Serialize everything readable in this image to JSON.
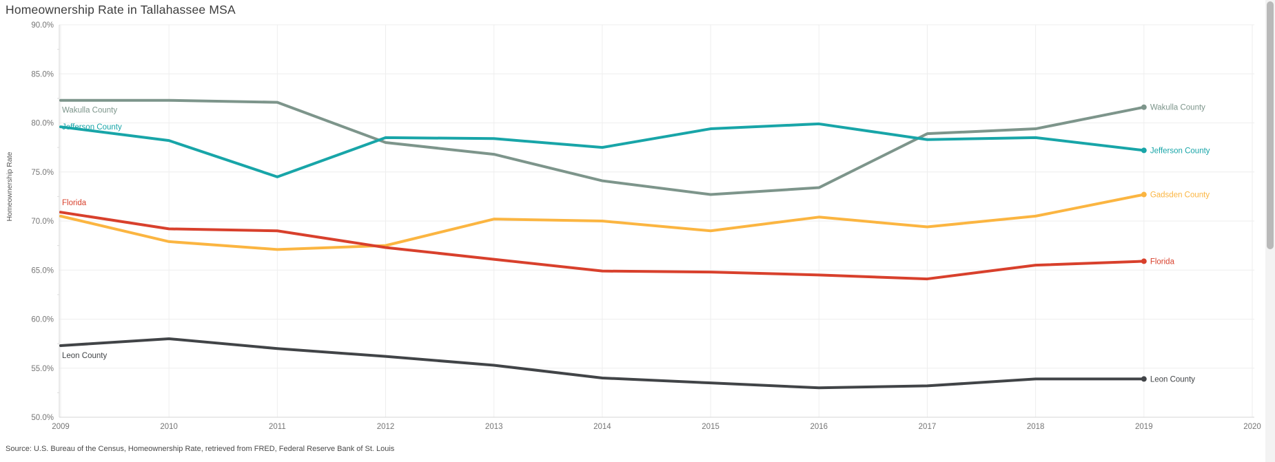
{
  "page": {
    "title": "Homeownership Rate in Tallahassee MSA",
    "source": "Source: U.S. Bureau of the Census, Homeownership Rate, retrieved from FRED, Federal Reserve Bank of St. Louis"
  },
  "chart_data": {
    "type": "line",
    "title": "Homeownership Rate in Tallahassee MSA",
    "xlabel": "",
    "ylabel": "Homeownership Rate",
    "x": [
      2009,
      2010,
      2011,
      2012,
      2013,
      2014,
      2015,
      2016,
      2017,
      2018,
      2019
    ],
    "x_axis_ticks": [
      {
        "value": 2009,
        "label": "2009"
      },
      {
        "value": 2010,
        "label": "2010"
      },
      {
        "value": 2011,
        "label": "2011"
      },
      {
        "value": 2012,
        "label": "2012"
      },
      {
        "value": 2013,
        "label": "2013"
      },
      {
        "value": 2014,
        "label": "2014"
      },
      {
        "value": 2015,
        "label": "2015"
      },
      {
        "value": 2016,
        "label": "2016"
      },
      {
        "value": 2017,
        "label": "2017"
      },
      {
        "value": 2018,
        "label": "2018"
      },
      {
        "value": 2019,
        "label": "2019"
      },
      {
        "value": 2020,
        "label": "2020"
      }
    ],
    "ylim": [
      50,
      90
    ],
    "xlim": [
      2009,
      2020
    ],
    "y_ticks": [
      {
        "value": 90,
        "label": "90.0%"
      },
      {
        "value": 85,
        "label": "85.0%"
      },
      {
        "value": 80,
        "label": "80.0%"
      },
      {
        "value": 75,
        "label": "75.0%"
      },
      {
        "value": 70,
        "label": "70.0%"
      },
      {
        "value": 65,
        "label": "65.0%"
      },
      {
        "value": 60,
        "label": "60.0%"
      },
      {
        "value": 55,
        "label": "55.0%"
      },
      {
        "value": 50,
        "label": "50.0%"
      }
    ],
    "grid": true,
    "legend_position": "inline-start-and-end-labels",
    "series": [
      {
        "name": "Wakulla County",
        "color": "#7d958b",
        "values": [
          82.3,
          82.3,
          82.1,
          78.0,
          76.8,
          74.1,
          72.7,
          73.4,
          78.9,
          79.4,
          81.6
        ],
        "left_label": true,
        "left_label_dy": 14
      },
      {
        "name": "Jefferson County",
        "color": "#18a5a8",
        "values": [
          79.6,
          78.2,
          74.5,
          78.5,
          78.4,
          77.5,
          79.4,
          79.9,
          78.3,
          78.5,
          77.2
        ],
        "left_label": true,
        "left_label_dy": 0
      },
      {
        "name": "Gadsden County",
        "color": "#fbb541",
        "values": [
          70.5,
          67.9,
          67.1,
          67.5,
          70.2,
          70.0,
          69.0,
          70.4,
          69.4,
          70.5,
          72.7
        ],
        "left_label": false,
        "left_label_dy": 0
      },
      {
        "name": "Florida",
        "color": "#d8402c",
        "values": [
          70.9,
          69.2,
          69.0,
          67.3,
          66.1,
          64.9,
          64.8,
          64.5,
          64.1,
          65.5,
          65.9
        ],
        "left_label": true,
        "left_label_dy": -14
      },
      {
        "name": "Leon County",
        "color": "#414447",
        "values": [
          57.3,
          58.0,
          57.0,
          56.2,
          55.3,
          54.0,
          53.5,
          53.0,
          53.2,
          53.9,
          53.9
        ],
        "left_label": true,
        "left_label_dy": 14
      }
    ]
  }
}
